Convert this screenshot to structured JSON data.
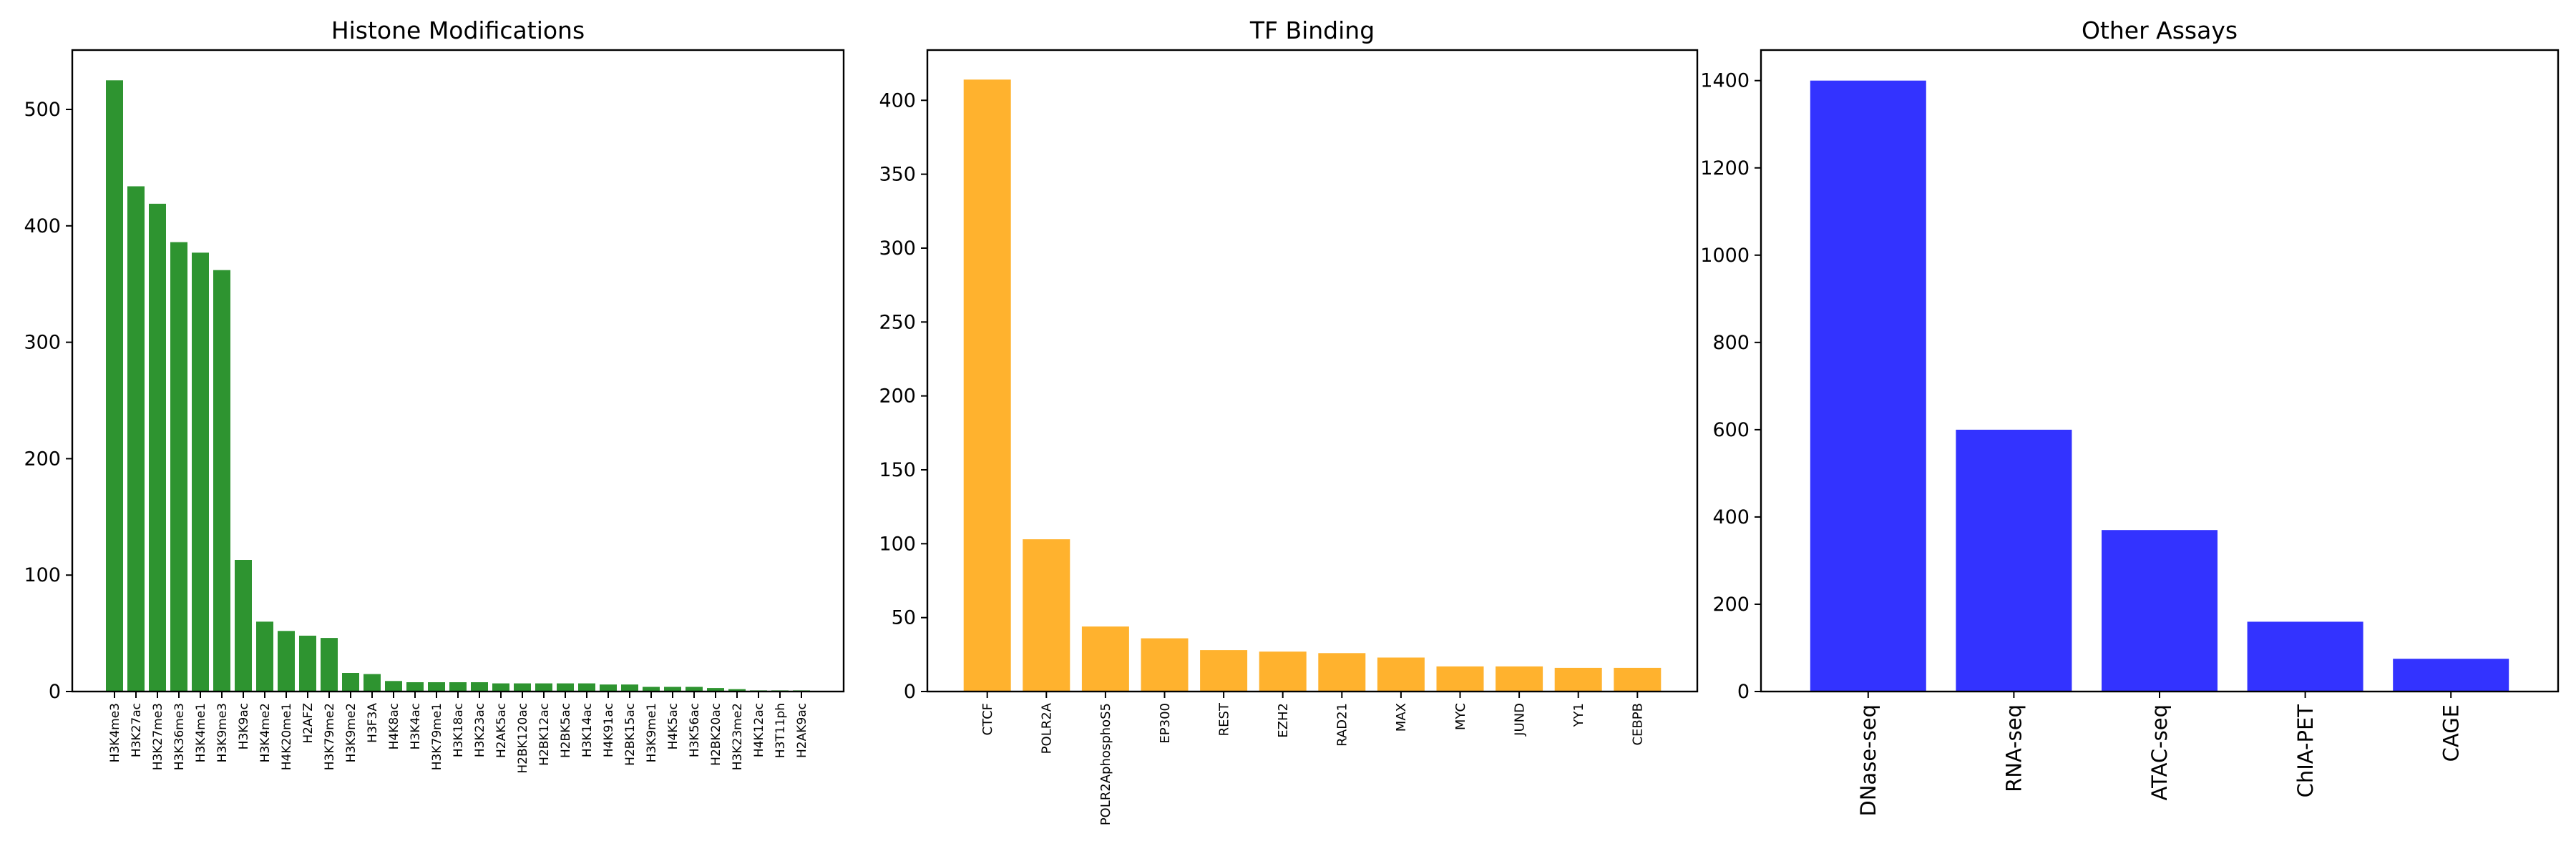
{
  "chart_data": [
    {
      "type": "bar",
      "title": "Histone Modifications",
      "xlabel": "",
      "ylabel": "",
      "color": "#2e9430",
      "ylim": [
        0,
        551
      ],
      "yticks": [
        0,
        100,
        200,
        300,
        400,
        500
      ],
      "grid": false,
      "categories": [
        "H3K4me3",
        "H3K27ac",
        "H3K27me3",
        "H3K36me3",
        "H3K4me1",
        "H3K9me3",
        "H3K9ac",
        "H3K4me2",
        "H4K20me1",
        "H2AFZ",
        "H3K79me2",
        "H3K9me2",
        "H3F3A",
        "H4K8ac",
        "H3K4ac",
        "H3K79me1",
        "H3K18ac",
        "H3K23ac",
        "H2AK5ac",
        "H2BK120ac",
        "H2BK12ac",
        "H2BK5ac",
        "H3K14ac",
        "H4K91ac",
        "H2BK15ac",
        "H3K9me1",
        "H4K5ac",
        "H3K56ac",
        "H2BK20ac",
        "H3K23me2",
        "H4K12ac",
        "H3T11ph",
        "H2AK9ac"
      ],
      "values": [
        525,
        434,
        419,
        386,
        377,
        362,
        113,
        60,
        52,
        48,
        46,
        16,
        15,
        9,
        8,
        8,
        8,
        8,
        7,
        7,
        7,
        7,
        7,
        6,
        6,
        4,
        4,
        4,
        3,
        2,
        1,
        1,
        1
      ]
    },
    {
      "type": "bar",
      "title": "TF Binding",
      "xlabel": "",
      "ylabel": "",
      "color": "#ffb22e",
      "ylim": [
        0,
        434
      ],
      "yticks": [
        0,
        50,
        100,
        150,
        200,
        250,
        300,
        350,
        400
      ],
      "grid": false,
      "categories": [
        "CTCF",
        "POLR2A",
        "POLR2AphosphoS5",
        "EP300",
        "REST",
        "EZH2",
        "RAD21",
        "MAX",
        "MYC",
        "JUND",
        "YY1",
        "CEBPB"
      ],
      "values": [
        414,
        103,
        44,
        36,
        28,
        27,
        26,
        23,
        17,
        17,
        16,
        16
      ]
    },
    {
      "type": "bar",
      "title": "Other Assays",
      "xlabel": "",
      "ylabel": "",
      "color": "#3333ff",
      "ylim": [
        0,
        1470
      ],
      "yticks": [
        0,
        200,
        400,
        600,
        800,
        1000,
        1200,
        1400
      ],
      "grid": false,
      "categories": [
        "DNase-seq",
        "RNA-seq",
        "ATAC-seq",
        "ChIA-PET",
        "CAGE"
      ],
      "values": [
        1400,
        600,
        370,
        160,
        75
      ]
    }
  ]
}
